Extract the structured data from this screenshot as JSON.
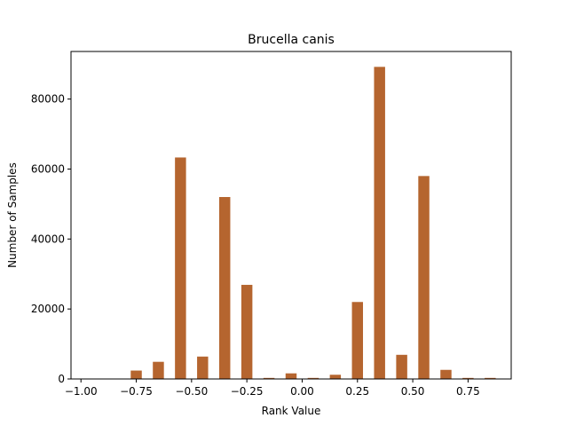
{
  "chart_data": {
    "type": "bar",
    "title": "Brucella canis",
    "xlabel": "Rank Value",
    "ylabel": "Number of Samples",
    "xlim": [
      -1.045,
      0.945
    ],
    "ylim": [
      0,
      93600
    ],
    "x_ticks": [
      -1.0,
      -0.75,
      -0.5,
      -0.25,
      0.0,
      0.25,
      0.5,
      0.75
    ],
    "x_tick_labels": [
      "−1.00",
      "−0.75",
      "−0.50",
      "−0.25",
      "0.00",
      "0.25",
      "0.50",
      "0.75"
    ],
    "y_ticks": [
      0,
      20000,
      40000,
      60000,
      80000
    ],
    "y_tick_labels": [
      "0",
      "20000",
      "40000",
      "60000",
      "80000"
    ],
    "bar_width": 0.05,
    "color": "#b5652f",
    "grid": false,
    "series": [
      {
        "name": "Number of Samples",
        "x": [
          -0.95,
          -0.85,
          -0.75,
          -0.65,
          -0.55,
          -0.45,
          -0.35,
          -0.25,
          -0.15,
          -0.05,
          0.05,
          0.15,
          0.25,
          0.35,
          0.45,
          0.55,
          0.65,
          0.75,
          0.85
        ],
        "values": [
          0,
          0,
          2400,
          4900,
          63300,
          6400,
          52000,
          26900,
          300,
          1600,
          300,
          1200,
          22000,
          89200,
          6900,
          58000,
          2600,
          300,
          300
        ]
      }
    ]
  }
}
